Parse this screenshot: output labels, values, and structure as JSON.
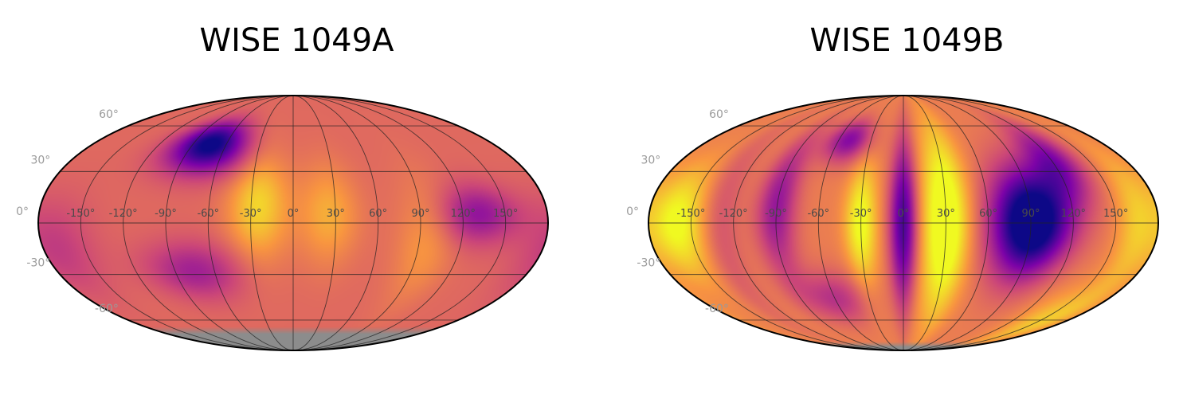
{
  "chart_data": [
    {
      "type": "heatmap",
      "projection": "mollweide",
      "title": "WISE 1049A",
      "colormap": "plasma",
      "grid": true,
      "lon_ticks": [
        "-150°",
        "-120°",
        "-90°",
        "-60°",
        "-30°",
        "0°",
        "30°",
        "60°",
        "90°",
        "120°",
        "150°"
      ],
      "lat_ticks": [
        "60°",
        "30°",
        "0°",
        "-30°",
        "-60°"
      ],
      "background_color": "#d96d5e",
      "masked_color": "#8c8c8c",
      "masked_below_lat": -65,
      "features": [
        {
          "lon": -75,
          "lat": 50,
          "intensity": 0.5,
          "sigma_lon": 22,
          "sigma_lat": 10
        },
        {
          "lon": -70,
          "lat": 38,
          "intensity": 0.25,
          "sigma_lon": 25,
          "sigma_lat": 10
        },
        {
          "lon": 130,
          "lat": 5,
          "intensity": 0.3,
          "sigma_lon": 20,
          "sigma_lat": 12
        },
        {
          "lon": -75,
          "lat": -28,
          "intensity": 0.25,
          "sigma_lon": 25,
          "sigma_lat": 12
        },
        {
          "lon": -170,
          "lat": -15,
          "intensity": 0.15,
          "sigma_lon": 20,
          "sigma_lat": 20
        },
        {
          "lon": -25,
          "lat": 10,
          "intensity": -0.3,
          "sigma_lon": 15,
          "sigma_lat": 22
        },
        {
          "lon": 25,
          "lat": 5,
          "intensity": -0.2,
          "sigma_lon": 15,
          "sigma_lat": 20
        },
        {
          "lon": 95,
          "lat": -10,
          "intensity": -0.15,
          "sigma_lon": 15,
          "sigma_lat": 25
        }
      ]
    },
    {
      "type": "heatmap",
      "projection": "mollweide",
      "title": "WISE 1049B",
      "colormap": "plasma",
      "grid": true,
      "lon_ticks": [
        "-150°",
        "-120°",
        "-90°",
        "-60°",
        "-30°",
        "0°",
        "30°",
        "60°",
        "90°",
        "120°",
        "150°"
      ],
      "lat_ticks": [
        "60°",
        "30°",
        "0°",
        "-30°",
        "-60°"
      ],
      "background_color": "#e88252",
      "masked_color": "#8c8c8c",
      "masked_below_lat": -78,
      "features": [
        {
          "lon": 90,
          "lat": 0,
          "intensity": 0.85,
          "sigma_lon": 20,
          "sigma_lat": 22
        },
        {
          "lon": 120,
          "lat": 35,
          "intensity": 0.4,
          "sigma_lon": 15,
          "sigma_lat": 18
        },
        {
          "lon": 0,
          "lat": 0,
          "intensity": 0.55,
          "sigma_lon": 7,
          "sigma_lat": 35
        },
        {
          "lon": -50,
          "lat": 50,
          "intensity": 0.4,
          "sigma_lon": 15,
          "sigma_lat": 10
        },
        {
          "lon": -90,
          "lat": 10,
          "intensity": 0.35,
          "sigma_lon": 10,
          "sigma_lat": 30
        },
        {
          "lon": -60,
          "lat": -45,
          "intensity": 0.25,
          "sigma_lon": 20,
          "sigma_lat": 12
        },
        {
          "lon": -130,
          "lat": 0,
          "intensity": 0.15,
          "sigma_lon": 10,
          "sigma_lat": 40
        },
        {
          "lon": 30,
          "lat": 0,
          "intensity": -0.45,
          "sigma_lon": 12,
          "sigma_lat": 40
        },
        {
          "lon": -30,
          "lat": 0,
          "intensity": -0.35,
          "sigma_lon": 8,
          "sigma_lat": 25
        },
        {
          "lon": -160,
          "lat": 0,
          "intensity": -0.35,
          "sigma_lon": 15,
          "sigma_lat": 22
        },
        {
          "lon": 165,
          "lat": 0,
          "intensity": -0.2,
          "sigma_lon": 10,
          "sigma_lat": 30
        },
        {
          "lon": 150,
          "lat": -60,
          "intensity": -0.2,
          "sigma_lon": 20,
          "sigma_lat": 15
        }
      ]
    }
  ]
}
